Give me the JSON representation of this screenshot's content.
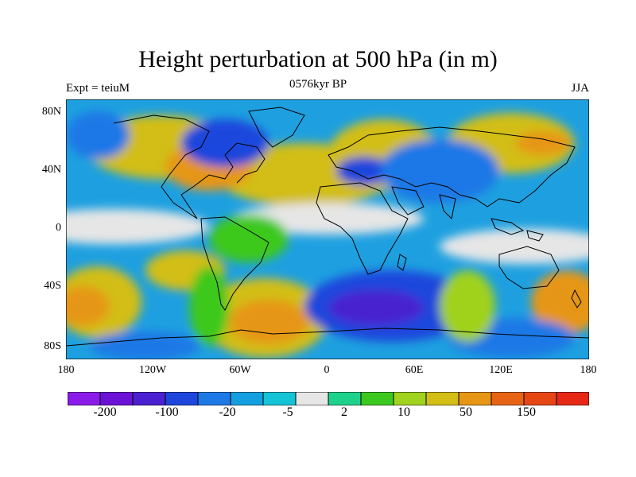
{
  "title": "Height perturbation at 500 hPa (in m)",
  "left_label": "Expt = teiuM",
  "center_label": "0576kyr BP",
  "right_label": "JJA",
  "lat_ticks": [
    "80N",
    "40N",
    "0",
    "40S",
    "80S"
  ],
  "lon_ticks": [
    "180",
    "120W",
    "60W",
    "0",
    "60E",
    "120E",
    "180"
  ],
  "colorbar": {
    "colors": [
      "#8c1ae8",
      "#6a12d6",
      "#4a20d0",
      "#1e46dc",
      "#1e78e6",
      "#14a0e0",
      "#14c3d6",
      "#e6e6e6",
      "#1ed28c",
      "#3cc81e",
      "#a0d21e",
      "#d2be14",
      "#e69614",
      "#e66414",
      "#e64614",
      "#e62814"
    ],
    "labels": [
      "-200",
      "-100",
      "-20",
      "-5",
      "2",
      "10",
      "50",
      "150"
    ]
  }
}
